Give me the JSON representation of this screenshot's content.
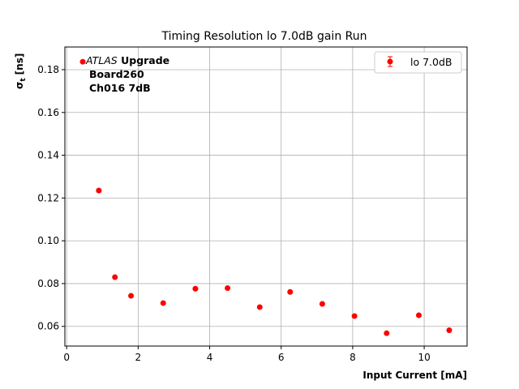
{
  "chart_data": {
    "type": "scatter",
    "title": "Timing Resolution lo 7.0dB gain Run",
    "xlabel": "Input Current [mA]",
    "ylabel_main": "σ",
    "ylabel_sub": "t",
    "ylabel_unit": "[ns]",
    "xlim": [
      -0.05,
      11.2
    ],
    "ylim": [
      0.0508,
      0.1906
    ],
    "xticks": [
      0,
      2,
      4,
      6,
      8,
      10
    ],
    "yticks": [
      0.06,
      0.08,
      0.1,
      0.12,
      0.14,
      0.16,
      0.18
    ],
    "ytick_labels": [
      "0.06",
      "0.08",
      "0.10",
      "0.12",
      "0.14",
      "0.16",
      "0.18"
    ],
    "grid": true,
    "legend_placement": "top-right",
    "series": [
      {
        "name": "lo 7.0dB",
        "color": "#ff0000",
        "x": [
          0.45,
          0.9,
          1.35,
          1.8,
          2.7,
          3.6,
          4.5,
          5.4,
          6.25,
          7.15,
          8.05,
          8.95,
          9.85,
          10.7
        ],
        "y": [
          0.1837,
          0.1235,
          0.083,
          0.0743,
          0.0709,
          0.0776,
          0.0779,
          0.069,
          0.0761,
          0.0705,
          0.0648,
          0.0568,
          0.0652,
          0.0582
        ]
      }
    ],
    "annotation": {
      "atlas": "ATLAS",
      "upgrade": "Upgrade",
      "board": "Board260",
      "channel": "Ch016 7dB"
    }
  }
}
